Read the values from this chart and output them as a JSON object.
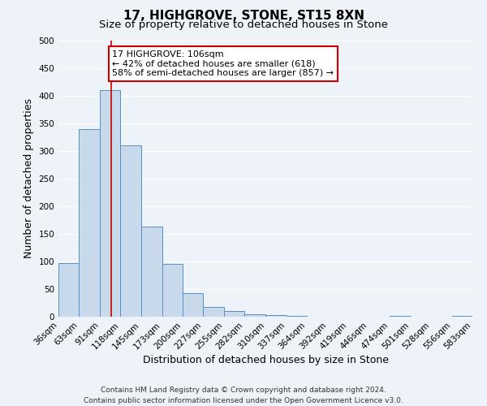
{
  "title": "17, HIGHGROVE, STONE, ST15 8XN",
  "subtitle": "Size of property relative to detached houses in Stone",
  "xlabel": "Distribution of detached houses by size in Stone",
  "ylabel": "Number of detached properties",
  "bin_edges": [
    36,
    63,
    91,
    118,
    145,
    173,
    200,
    227,
    255,
    282,
    310,
    337,
    364,
    392,
    419,
    446,
    474,
    501,
    528,
    556,
    583
  ],
  "bar_heights": [
    97,
    340,
    410,
    310,
    163,
    95,
    42,
    18,
    10,
    5,
    3,
    1,
    0,
    0,
    0,
    0,
    2,
    0,
    0,
    2
  ],
  "bar_color": "#c9d9ec",
  "bar_edge_color": "#5a8fc3",
  "property_line_x": 106,
  "property_line_color": "#cc0000",
  "annotation_line1": "17 HIGHGROVE: 106sqm",
  "annotation_line2": "← 42% of detached houses are smaller (618)",
  "annotation_line3": "58% of semi-detached houses are larger (857) →",
  "annotation_box_color": "#ffffff",
  "annotation_box_edge": "#cc0000",
  "ylim": [
    0,
    500
  ],
  "yticks": [
    0,
    50,
    100,
    150,
    200,
    250,
    300,
    350,
    400,
    450,
    500
  ],
  "footer_line1": "Contains HM Land Registry data © Crown copyright and database right 2024.",
  "footer_line2": "Contains public sector information licensed under the Open Government Licence v3.0.",
  "background_color": "#eef2f9",
  "grid_color": "#ffffff",
  "title_fontsize": 11,
  "subtitle_fontsize": 9.5,
  "axis_label_fontsize": 9,
  "tick_fontsize": 7.5,
  "annotation_fontsize": 8,
  "footer_fontsize": 6.5
}
